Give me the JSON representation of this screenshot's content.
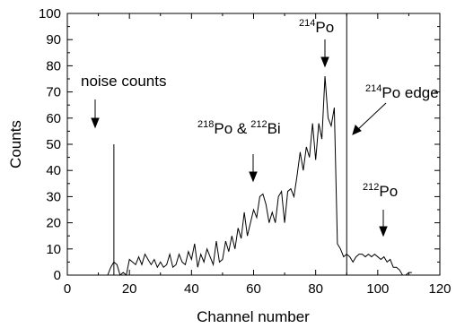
{
  "chart_data": {
    "type": "line",
    "title": "",
    "xlabel": "Channel number",
    "ylabel": "Counts",
    "xlim": [
      0,
      120
    ],
    "ylim": [
      0,
      100
    ],
    "x_ticks": [
      0,
      20,
      40,
      60,
      80,
      100,
      120
    ],
    "y_ticks": [
      0,
      10,
      20,
      30,
      40,
      50,
      60,
      70,
      80,
      90,
      100
    ],
    "grid": false,
    "legend": "none",
    "series": [
      {
        "x": [
          13,
          14,
          15,
          16,
          17,
          18,
          19,
          20,
          21,
          22,
          23,
          24,
          25,
          26,
          27,
          28,
          29,
          30,
          31,
          32,
          33,
          34,
          35,
          36,
          37,
          38,
          39,
          40,
          41,
          42,
          43,
          44,
          45,
          46,
          47,
          48,
          49,
          50,
          51,
          52,
          53,
          54,
          55,
          56,
          57,
          58,
          59,
          60,
          61,
          62,
          63,
          64,
          65,
          66,
          67,
          68,
          69,
          70,
          71,
          72,
          73,
          74,
          75,
          76,
          77,
          78,
          79,
          80,
          81,
          82,
          83,
          84,
          85,
          86,
          87,
          88,
          89,
          90,
          91,
          92,
          93,
          94,
          95,
          96,
          97,
          98,
          99,
          100,
          101,
          102,
          103,
          104,
          105,
          106,
          107,
          108,
          109,
          110,
          111
        ],
        "y": [
          0,
          3,
          5,
          4,
          0,
          1,
          0,
          6,
          5,
          4,
          7,
          4,
          8,
          6,
          4,
          6,
          3,
          5,
          3,
          4,
          8,
          3,
          4,
          8,
          5,
          4,
          9,
          6,
          12,
          3,
          8,
          5,
          10,
          7,
          4,
          13,
          5,
          6,
          13,
          9,
          15,
          10,
          18,
          14,
          24,
          15,
          20,
          25,
          22,
          30,
          31,
          27,
          20,
          24,
          20,
          30,
          32,
          20,
          32,
          33,
          30,
          38,
          47,
          40,
          49,
          45,
          58,
          44,
          58,
          52,
          76,
          60,
          57,
          64,
          12,
          10,
          7,
          8,
          7,
          5,
          7,
          8,
          8,
          7,
          8,
          7,
          8,
          7,
          6,
          7,
          5,
          6,
          3,
          3,
          2,
          0,
          0,
          1,
          1
        ]
      }
    ],
    "vertical_lines": [
      15,
      90
    ],
    "annotations": {
      "noise": "noise counts",
      "po214_mass": "214",
      "po214_symbol": "Po",
      "po218_mass": "218",
      "po218_symbol": "Po &",
      "bi212_mass": "212",
      "bi212_symbol": "Bi",
      "edge_mass": "214",
      "edge_symbol": "Po edge",
      "po212_mass": "212",
      "po212_symbol": "Po"
    }
  }
}
